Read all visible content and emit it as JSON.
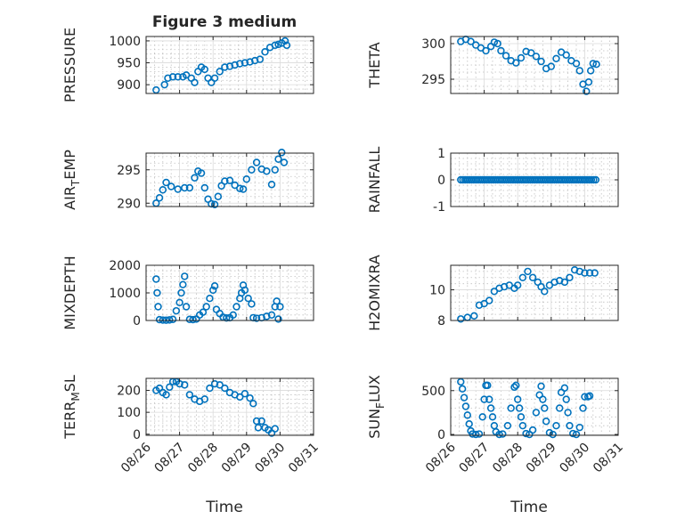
{
  "figure_title": "Figure 3 medium",
  "x_axis_label": "Time",
  "chart_data": [
    {
      "type": "scatter",
      "ylabel": "PRESSURE",
      "title": "Figure 3 medium",
      "ylim": [
        880,
        1010
      ],
      "yticks": [
        900,
        950,
        1000
      ],
      "xlim": [
        0,
        5
      ],
      "xticks": [
        0,
        1,
        2,
        3,
        4,
        5
      ],
      "xtick_labels": [
        "08/26",
        "08/27",
        "08/28",
        "08/29",
        "08/30",
        "08/31"
      ],
      "show_xtick_labels": false,
      "points": [
        [
          0.3,
          888
        ],
        [
          0.55,
          900
        ],
        [
          0.65,
          915
        ],
        [
          0.8,
          918
        ],
        [
          0.95,
          918
        ],
        [
          1.1,
          918
        ],
        [
          1.2,
          922
        ],
        [
          1.35,
          915
        ],
        [
          1.45,
          905
        ],
        [
          1.55,
          930
        ],
        [
          1.65,
          940
        ],
        [
          1.75,
          935
        ],
        [
          1.85,
          915
        ],
        [
          1.95,
          905
        ],
        [
          2.05,
          915
        ],
        [
          2.2,
          930
        ],
        [
          2.35,
          940
        ],
        [
          2.5,
          942
        ],
        [
          2.65,
          945
        ],
        [
          2.8,
          948
        ],
        [
          2.95,
          950
        ],
        [
          3.1,
          952
        ],
        [
          3.25,
          955
        ],
        [
          3.4,
          958
        ],
        [
          3.55,
          975
        ],
        [
          3.7,
          985
        ],
        [
          3.85,
          990
        ],
        [
          3.95,
          992
        ],
        [
          4.05,
          995
        ],
        [
          4.15,
          1000
        ],
        [
          4.2,
          990
        ]
      ]
    },
    {
      "type": "scatter",
      "ylabel": "THETA",
      "ylim": [
        293,
        301
      ],
      "yticks": [
        295,
        300
      ],
      "xlim": [
        0,
        5
      ],
      "xticks": [
        0,
        1,
        2,
        3,
        4,
        5
      ],
      "xtick_labels": [
        "08/26",
        "08/27",
        "08/28",
        "08/29",
        "08/30",
        "08/31"
      ],
      "show_xtick_labels": false,
      "points": [
        [
          0.3,
          300.3
        ],
        [
          0.45,
          300.6
        ],
        [
          0.6,
          300.3
        ],
        [
          0.75,
          299.8
        ],
        [
          0.9,
          299.4
        ],
        [
          1.05,
          299
        ],
        [
          1.2,
          299.6
        ],
        [
          1.3,
          300.2
        ],
        [
          1.4,
          300
        ],
        [
          1.5,
          299
        ],
        [
          1.65,
          298.3
        ],
        [
          1.8,
          297.6
        ],
        [
          1.95,
          297.3
        ],
        [
          2.1,
          298
        ],
        [
          2.25,
          298.9
        ],
        [
          2.4,
          298.7
        ],
        [
          2.55,
          298.2
        ],
        [
          2.7,
          297.5
        ],
        [
          2.85,
          296.5
        ],
        [
          3.0,
          296.8
        ],
        [
          3.15,
          297.9
        ],
        [
          3.3,
          298.8
        ],
        [
          3.45,
          298.4
        ],
        [
          3.6,
          297.6
        ],
        [
          3.75,
          297.2
        ],
        [
          3.85,
          296.2
        ],
        [
          3.95,
          294.3
        ],
        [
          4.05,
          293.3
        ],
        [
          4.12,
          294.6
        ],
        [
          4.18,
          296.2
        ],
        [
          4.25,
          297.2
        ],
        [
          4.35,
          297.1
        ]
      ]
    },
    {
      "type": "scatter",
      "ylabel": "AIR",
      "ylabel_sub": "T",
      "ylabel_after": "EMP",
      "ylim": [
        289.5,
        297.5
      ],
      "yticks": [
        290,
        295
      ],
      "xlim": [
        0,
        5
      ],
      "xticks": [
        0,
        1,
        2,
        3,
        4,
        5
      ],
      "xtick_labels": [
        "08/26",
        "08/27",
        "08/28",
        "08/29",
        "08/30",
        "08/31"
      ],
      "show_xtick_labels": false,
      "points": [
        [
          0.3,
          290
        ],
        [
          0.4,
          290.8
        ],
        [
          0.5,
          292
        ],
        [
          0.6,
          293.1
        ],
        [
          0.75,
          292.5
        ],
        [
          0.95,
          292.1
        ],
        [
          1.15,
          292.3
        ],
        [
          1.3,
          292.3
        ],
        [
          1.45,
          293.8
        ],
        [
          1.55,
          294.8
        ],
        [
          1.65,
          294.5
        ],
        [
          1.75,
          292.3
        ],
        [
          1.85,
          290.6
        ],
        [
          1.95,
          289.9
        ],
        [
          2.05,
          289.8
        ],
        [
          2.15,
          291
        ],
        [
          2.25,
          292.6
        ],
        [
          2.35,
          293.3
        ],
        [
          2.5,
          293.4
        ],
        [
          2.65,
          292.7
        ],
        [
          2.8,
          292.2
        ],
        [
          2.9,
          292.1
        ],
        [
          3.0,
          293.6
        ],
        [
          3.15,
          295
        ],
        [
          3.3,
          296.1
        ],
        [
          3.45,
          295.1
        ],
        [
          3.6,
          294.8
        ],
        [
          3.75,
          292.8
        ],
        [
          3.85,
          295
        ],
        [
          3.95,
          296.6
        ],
        [
          4.05,
          297.6
        ],
        [
          4.12,
          296.1
        ]
      ]
    },
    {
      "type": "scatter",
      "ylabel": "RAINFALL",
      "ylim": [
        -1,
        1
      ],
      "yticks": [
        -1,
        0,
        1
      ],
      "xlim": [
        0,
        5
      ],
      "xticks": [
        0,
        1,
        2,
        3,
        4,
        5
      ],
      "xtick_labels": [
        "08/26",
        "08/27",
        "08/28",
        "08/29",
        "08/30",
        "08/31"
      ],
      "show_xtick_labels": false,
      "points_rule": "constant",
      "constant_y": 0,
      "x_start": 0.3,
      "x_end": 4.35,
      "x_step": 0.065
    },
    {
      "type": "scatter",
      "ylabel": "MIXDEPTH",
      "ylim": [
        0,
        2000
      ],
      "yticks": [
        0,
        1000,
        2000
      ],
      "xlim": [
        0,
        5
      ],
      "xticks": [
        0,
        1,
        2,
        3,
        4,
        5
      ],
      "xtick_labels": [
        "08/26",
        "08/27",
        "08/28",
        "08/29",
        "08/30",
        "08/31"
      ],
      "show_xtick_labels": false,
      "points": [
        [
          0.3,
          1500
        ],
        [
          0.33,
          1000
        ],
        [
          0.36,
          500
        ],
        [
          0.4,
          30
        ],
        [
          0.5,
          15
        ],
        [
          0.6,
          10
        ],
        [
          0.7,
          20
        ],
        [
          0.8,
          40
        ],
        [
          0.9,
          350
        ],
        [
          1.0,
          650
        ],
        [
          1.05,
          1000
        ],
        [
          1.1,
          1300
        ],
        [
          1.15,
          1600
        ],
        [
          1.2,
          500
        ],
        [
          1.3,
          40
        ],
        [
          1.4,
          30
        ],
        [
          1.5,
          50
        ],
        [
          1.6,
          200
        ],
        [
          1.7,
          300
        ],
        [
          1.8,
          500
        ],
        [
          1.9,
          800
        ],
        [
          2.0,
          1100
        ],
        [
          2.05,
          1250
        ],
        [
          2.1,
          400
        ],
        [
          2.2,
          250
        ],
        [
          2.3,
          120
        ],
        [
          2.4,
          90
        ],
        [
          2.5,
          100
        ],
        [
          2.6,
          200
        ],
        [
          2.7,
          500
        ],
        [
          2.8,
          800
        ],
        [
          2.85,
          1000
        ],
        [
          2.9,
          1280
        ],
        [
          2.95,
          1100
        ],
        [
          3.05,
          800
        ],
        [
          3.15,
          600
        ],
        [
          3.2,
          100
        ],
        [
          3.3,
          80
        ],
        [
          3.45,
          100
        ],
        [
          3.6,
          150
        ],
        [
          3.75,
          200
        ],
        [
          3.85,
          500
        ],
        [
          3.9,
          700
        ],
        [
          3.95,
          50
        ],
        [
          4.0,
          500
        ]
      ]
    },
    {
      "type": "scatter",
      "ylabel": "H2OMIXRA",
      "ylim": [
        8,
        11.6
      ],
      "yticks": [
        8,
        10
      ],
      "xlim": [
        0,
        5
      ],
      "xticks": [
        0,
        1,
        2,
        3,
        4,
        5
      ],
      "xtick_labels": [
        "08/26",
        "08/27",
        "08/28",
        "08/29",
        "08/30",
        "08/31"
      ],
      "show_xtick_labels": false,
      "points": [
        [
          0.3,
          8.1
        ],
        [
          0.5,
          8.2
        ],
        [
          0.7,
          8.3
        ],
        [
          0.85,
          9
        ],
        [
          1.0,
          9.1
        ],
        [
          1.15,
          9.3
        ],
        [
          1.3,
          9.9
        ],
        [
          1.45,
          10.1
        ],
        [
          1.6,
          10.2
        ],
        [
          1.75,
          10.3
        ],
        [
          1.9,
          10.1
        ],
        [
          2.0,
          10.3
        ],
        [
          2.15,
          10.8
        ],
        [
          2.3,
          11.2
        ],
        [
          2.45,
          10.8
        ],
        [
          2.6,
          10.5
        ],
        [
          2.7,
          10.2
        ],
        [
          2.8,
          9.9
        ],
        [
          2.95,
          10.3
        ],
        [
          3.1,
          10.5
        ],
        [
          3.25,
          10.6
        ],
        [
          3.4,
          10.5
        ],
        [
          3.55,
          10.8
        ],
        [
          3.7,
          11.3
        ],
        [
          3.85,
          11.2
        ],
        [
          4.0,
          11.1
        ],
        [
          4.15,
          11.1
        ],
        [
          4.3,
          11.1
        ]
      ]
    },
    {
      "type": "scatter",
      "ylabel": "TERR",
      "ylabel_sub": "M",
      "ylabel_after": "SL",
      "ylim": [
        -5,
        255
      ],
      "yticks": [
        0,
        100,
        200
      ],
      "xlim": [
        0,
        5
      ],
      "xticks": [
        0,
        1,
        2,
        3,
        4,
        5
      ],
      "xtick_labels": [
        "08/26",
        "08/27",
        "08/28",
        "08/29",
        "08/30",
        "08/31"
      ],
      "show_xtick_labels": true,
      "points": [
        [
          0.3,
          200
        ],
        [
          0.4,
          210
        ],
        [
          0.5,
          190
        ],
        [
          0.6,
          180
        ],
        [
          0.7,
          215
        ],
        [
          0.8,
          240
        ],
        [
          0.9,
          240
        ],
        [
          1.0,
          230
        ],
        [
          1.15,
          225
        ],
        [
          1.3,
          180
        ],
        [
          1.45,
          160
        ],
        [
          1.6,
          150
        ],
        [
          1.75,
          160
        ],
        [
          1.9,
          210
        ],
        [
          2.05,
          230
        ],
        [
          2.2,
          225
        ],
        [
          2.35,
          210
        ],
        [
          2.5,
          190
        ],
        [
          2.65,
          180
        ],
        [
          2.8,
          170
        ],
        [
          2.95,
          185
        ],
        [
          3.1,
          165
        ],
        [
          3.2,
          140
        ],
        [
          3.3,
          60
        ],
        [
          3.35,
          30
        ],
        [
          3.45,
          60
        ],
        [
          3.55,
          30
        ],
        [
          3.65,
          20
        ],
        [
          3.75,
          5
        ],
        [
          3.85,
          25
        ]
      ]
    },
    {
      "type": "scatter",
      "ylabel": "SUN",
      "ylabel_sub": "F",
      "ylabel_after": "LUX",
      "ylim": [
        -10,
        640
      ],
      "yticks": [
        0,
        500
      ],
      "xlim": [
        0,
        5
      ],
      "xticks": [
        0,
        1,
        2,
        3,
        4,
        5
      ],
      "xtick_labels": [
        "08/26",
        "08/27",
        "08/28",
        "08/29",
        "08/30",
        "08/31"
      ],
      "show_xtick_labels": true,
      "points": [
        [
          0.3,
          600
        ],
        [
          0.35,
          520
        ],
        [
          0.4,
          420
        ],
        [
          0.45,
          320
        ],
        [
          0.5,
          220
        ],
        [
          0.55,
          120
        ],
        [
          0.6,
          40
        ],
        [
          0.65,
          5
        ],
        [
          0.75,
          0
        ],
        [
          0.85,
          5
        ],
        [
          0.95,
          200
        ],
        [
          1.0,
          400
        ],
        [
          1.05,
          560
        ],
        [
          1.1,
          560
        ],
        [
          1.15,
          400
        ],
        [
          1.2,
          300
        ],
        [
          1.25,
          200
        ],
        [
          1.3,
          100
        ],
        [
          1.35,
          30
        ],
        [
          1.45,
          0
        ],
        [
          1.55,
          5
        ],
        [
          1.7,
          100
        ],
        [
          1.8,
          300
        ],
        [
          1.9,
          540
        ],
        [
          1.95,
          560
        ],
        [
          2.0,
          400
        ],
        [
          2.05,
          300
        ],
        [
          2.1,
          200
        ],
        [
          2.15,
          100
        ],
        [
          2.25,
          10
        ],
        [
          2.35,
          0
        ],
        [
          2.45,
          50
        ],
        [
          2.55,
          250
        ],
        [
          2.65,
          450
        ],
        [
          2.7,
          550
        ],
        [
          2.75,
          400
        ],
        [
          2.8,
          300
        ],
        [
          2.85,
          150
        ],
        [
          2.95,
          20
        ],
        [
          3.05,
          0
        ],
        [
          3.15,
          100
        ],
        [
          3.25,
          300
        ],
        [
          3.3,
          480
        ],
        [
          3.4,
          530
        ],
        [
          3.45,
          400
        ],
        [
          3.5,
          250
        ],
        [
          3.55,
          100
        ],
        [
          3.65,
          10
        ],
        [
          3.75,
          0
        ],
        [
          3.85,
          80
        ],
        [
          3.95,
          300
        ],
        [
          4.0,
          430
        ],
        [
          4.1,
          430
        ],
        [
          4.15,
          440
        ]
      ]
    }
  ]
}
